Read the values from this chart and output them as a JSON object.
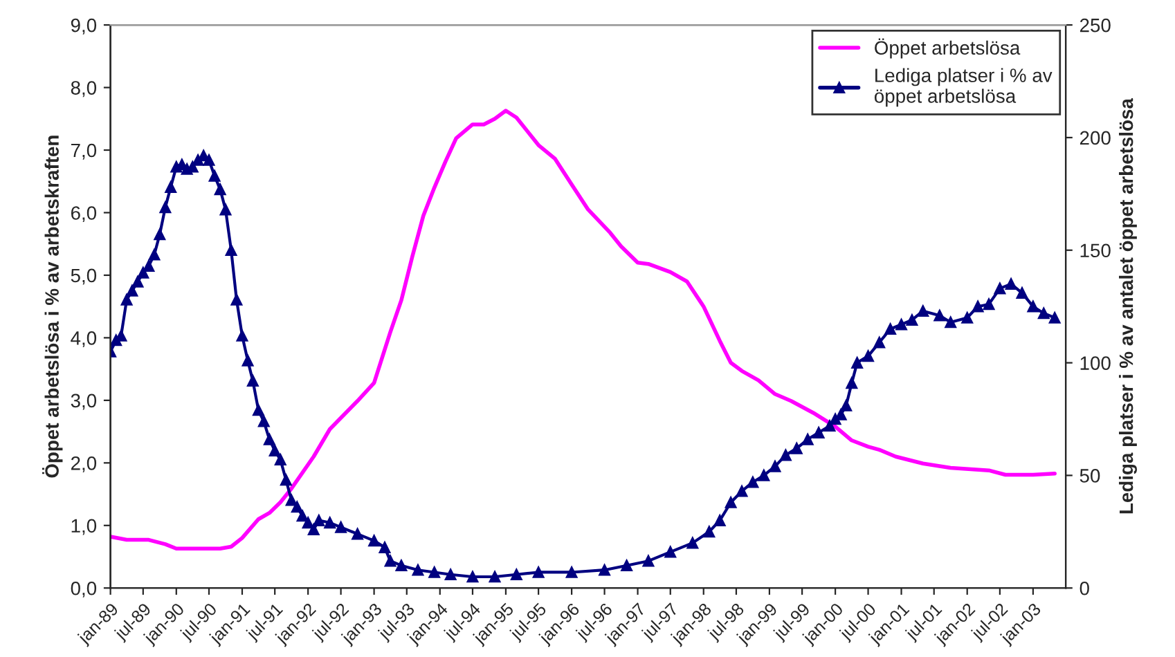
{
  "chart_data": {
    "type": "line",
    "ylabel": "Öppet arbetslösa i % av arbetskraften",
    "y2label": "Lediga platser i % av antalet öppet arbetslösa",
    "xlim": [
      "1989-01",
      "2003-07"
    ],
    "xticks": [
      {
        "value": "1989-01",
        "label": "jan-89"
      },
      {
        "value": "1989-07",
        "label": "jul-89"
      },
      {
        "value": "1990-01",
        "label": "jan-90"
      },
      {
        "value": "1990-07",
        "label": "jul-90"
      },
      {
        "value": "1991-01",
        "label": "jan-91"
      },
      {
        "value": "1991-07",
        "label": "jul-91"
      },
      {
        "value": "1992-01",
        "label": "jan-92"
      },
      {
        "value": "1992-07",
        "label": "jul-92"
      },
      {
        "value": "1993-01",
        "label": "jan-93"
      },
      {
        "value": "1993-07",
        "label": "jul-93"
      },
      {
        "value": "1994-01",
        "label": "jan-94"
      },
      {
        "value": "1994-07",
        "label": "jul-94"
      },
      {
        "value": "1995-01",
        "label": "jan-95"
      },
      {
        "value": "1995-07",
        "label": "jul-95"
      },
      {
        "value": "1996-01",
        "label": "jan-96"
      },
      {
        "value": "1996-07",
        "label": "jul-96"
      },
      {
        "value": "1997-01",
        "label": "jan-97"
      },
      {
        "value": "1997-07",
        "label": "jul-97"
      },
      {
        "value": "1998-01",
        "label": "jan-98"
      },
      {
        "value": "1998-07",
        "label": "jul-98"
      },
      {
        "value": "1999-01",
        "label": "jan-99"
      },
      {
        "value": "1999-07",
        "label": "jul-99"
      },
      {
        "value": "2000-01",
        "label": "jan-00"
      },
      {
        "value": "2000-07",
        "label": "jul-00"
      },
      {
        "value": "2001-01",
        "label": "jan-01"
      },
      {
        "value": "2001-07",
        "label": "jul-01"
      },
      {
        "value": "2002-01",
        "label": "jan-02"
      },
      {
        "value": "2002-07",
        "label": "jul-02"
      },
      {
        "value": "2003-01",
        "label": "jan-03"
      }
    ],
    "ylim": [
      0,
      9
    ],
    "yticks": [
      {
        "value": 0,
        "label": "0,0"
      },
      {
        "value": 1,
        "label": "1,0"
      },
      {
        "value": 2,
        "label": "2,0"
      },
      {
        "value": 3,
        "label": "3,0"
      },
      {
        "value": 4,
        "label": "4,0"
      },
      {
        "value": 5,
        "label": "5,0"
      },
      {
        "value": 6,
        "label": "6,0"
      },
      {
        "value": 7,
        "label": "7,0"
      },
      {
        "value": 8,
        "label": "8,0"
      },
      {
        "value": 9,
        "label": "9,0"
      }
    ],
    "y2lim": [
      0,
      250
    ],
    "y2ticks": [
      0,
      50,
      100,
      150,
      200,
      250
    ],
    "legend": "top right",
    "line_style": "solid",
    "series": [
      {
        "name": "Öppet arbetslösa",
        "color": "#ff00ff",
        "marker": "none",
        "x": [
          "1989-01",
          "1989-04",
          "1989-08",
          "1989-11",
          "1990-01",
          "1990-05",
          "1990-09",
          "1990-11",
          "1991-01",
          "1991-04",
          "1991-06",
          "1991-08",
          "1991-10",
          "1992-02",
          "1992-05",
          "1992-10",
          "1993-01",
          "1993-04",
          "1993-06",
          "1993-08",
          "1993-10",
          "1993-12",
          "1994-02",
          "1994-04",
          "1994-07",
          "1994-09",
          "1994-11",
          "1995-01",
          "1995-03",
          "1995-05",
          "1995-07",
          "1995-10",
          "1996-01",
          "1996-04",
          "1996-08",
          "1996-10",
          "1997-01",
          "1997-03",
          "1997-07",
          "1997-10",
          "1998-01",
          "1998-04",
          "1998-06",
          "1998-08",
          "1998-11",
          "1999-02",
          "1999-05",
          "1999-09",
          "2000-01",
          "2000-04",
          "2000-07",
          "2000-09",
          "2000-12",
          "2001-05",
          "2001-10",
          "2002-05",
          "2002-08",
          "2003-01",
          "2003-05"
        ],
        "values": [
          0.82,
          0.77,
          0.77,
          0.7,
          0.63,
          0.63,
          0.63,
          0.66,
          0.8,
          1.1,
          1.2,
          1.37,
          1.59,
          2.1,
          2.54,
          2.99,
          3.28,
          4.09,
          4.6,
          5.3,
          5.95,
          6.4,
          6.82,
          7.19,
          7.41,
          7.41,
          7.5,
          7.63,
          7.52,
          7.3,
          7.08,
          6.86,
          6.45,
          6.05,
          5.68,
          5.46,
          5.2,
          5.18,
          5.05,
          4.9,
          4.5,
          3.95,
          3.6,
          3.47,
          3.32,
          3.1,
          2.99,
          2.8,
          2.58,
          2.36,
          2.26,
          2.21,
          2.1,
          1.99,
          1.92,
          1.88,
          1.81,
          1.81,
          1.83
        ]
      },
      {
        "name": "Lediga platser i % av\nöppet arbetslösa",
        "color": "#000080",
        "marker": "triangle",
        "axis": "y2",
        "x": [
          "1989-01",
          "1989-02",
          "1989-03",
          "1989-04",
          "1989-05",
          "1989-06",
          "1989-07",
          "1989-08",
          "1989-09",
          "1989-10",
          "1989-11",
          "1989-12",
          "1990-01",
          "1990-02",
          "1990-03",
          "1990-04",
          "1990-05",
          "1990-06",
          "1990-07",
          "1990-08",
          "1990-09",
          "1990-10",
          "1990-11",
          "1990-12",
          "1991-01",
          "1991-02",
          "1991-03",
          "1991-04",
          "1991-05",
          "1991-06",
          "1991-07",
          "1991-08",
          "1991-09",
          "1991-10",
          "1991-11",
          "1991-12",
          "1992-01",
          "1992-02",
          "1992-03",
          "1992-05",
          "1992-07",
          "1992-10",
          "1993-01",
          "1993-03",
          "1993-04",
          "1993-06",
          "1993-09",
          "1993-12",
          "1994-03",
          "1994-07",
          "1994-11",
          "1995-03",
          "1995-07",
          "1996-01",
          "1996-07",
          "1996-11",
          "1997-03",
          "1997-07",
          "1997-11",
          "1998-02",
          "1998-04",
          "1998-06",
          "1998-08",
          "1998-10",
          "1998-12",
          "1999-02",
          "1999-04",
          "1999-06",
          "1999-08",
          "1999-10",
          "1999-12",
          "2000-01",
          "2000-02",
          "2000-03",
          "2000-04",
          "2000-05",
          "2000-07",
          "2000-09",
          "2000-11",
          "2001-01",
          "2001-03",
          "2001-05",
          "2001-08",
          "2001-10",
          "2002-01",
          "2002-03",
          "2002-05",
          "2002-07",
          "2002-09",
          "2002-11",
          "2003-01",
          "2003-03",
          "2003-05"
        ],
        "values": [
          105,
          110,
          112,
          128,
          132,
          136,
          140,
          143,
          148,
          157,
          169,
          178,
          187,
          188,
          186,
          187,
          190,
          192,
          190,
          183,
          177,
          168,
          150,
          128,
          112,
          101,
          92,
          79,
          74,
          66,
          61,
          57,
          48,
          39,
          36,
          32,
          29,
          26,
          30,
          29,
          27,
          24,
          21,
          18,
          12,
          10,
          8,
          7,
          6,
          5,
          5,
          6,
          7,
          7,
          8,
          10,
          12,
          16,
          20,
          25,
          30,
          38,
          43,
          47,
          50,
          54,
          59,
          62,
          66,
          69,
          72,
          75,
          77,
          81,
          91,
          100,
          103,
          109,
          115,
          117,
          119,
          123,
          121,
          118,
          120,
          125,
          126,
          133,
          135,
          131,
          125,
          122,
          120
        ]
      }
    ]
  }
}
